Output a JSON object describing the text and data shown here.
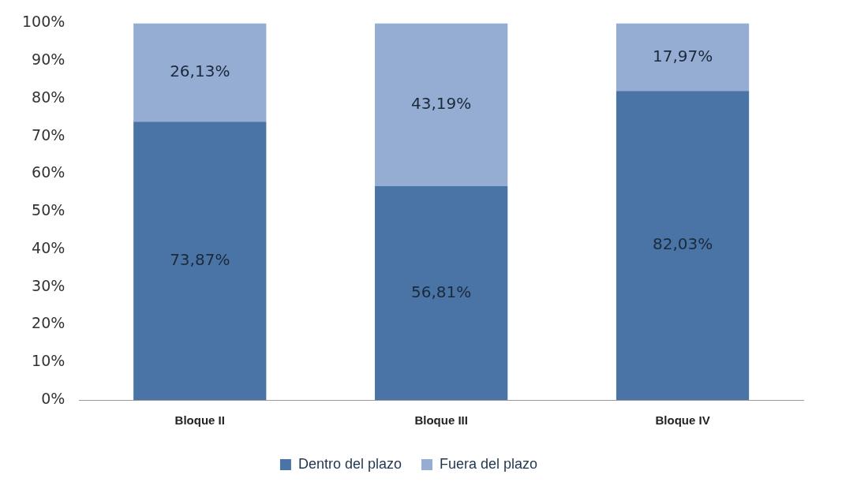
{
  "chart_data": {
    "type": "bar",
    "stacked": true,
    "categories": [
      "Bloque II",
      "Bloque III",
      "Bloque IV"
    ],
    "series": [
      {
        "name": "Dentro del plazo",
        "color": "#4a74a6",
        "values": [
          73.87,
          56.81,
          82.03
        ],
        "value_labels": [
          "73,87%",
          "56,81%",
          "82,03%"
        ]
      },
      {
        "name": "Fuera del plazo",
        "color": "#95acd3",
        "values": [
          26.13,
          43.19,
          17.97
        ],
        "value_labels": [
          "26,13%",
          "43,19%",
          "17,97%"
        ]
      }
    ],
    "ylim": [
      0,
      100
    ],
    "yticks": [
      {
        "value": 0,
        "label": "0%"
      },
      {
        "value": 10,
        "label": "10%"
      },
      {
        "value": 20,
        "label": "20%"
      },
      {
        "value": 30,
        "label": "30%"
      },
      {
        "value": 40,
        "label": "40%"
      },
      {
        "value": 50,
        "label": "50%"
      },
      {
        "value": 60,
        "label": "60%"
      },
      {
        "value": 70,
        "label": "70%"
      },
      {
        "value": 80,
        "label": "80%"
      },
      {
        "value": 90,
        "label": "90%"
      },
      {
        "value": 100,
        "label": "100%"
      }
    ],
    "grid": false,
    "legend": "bottom"
  }
}
